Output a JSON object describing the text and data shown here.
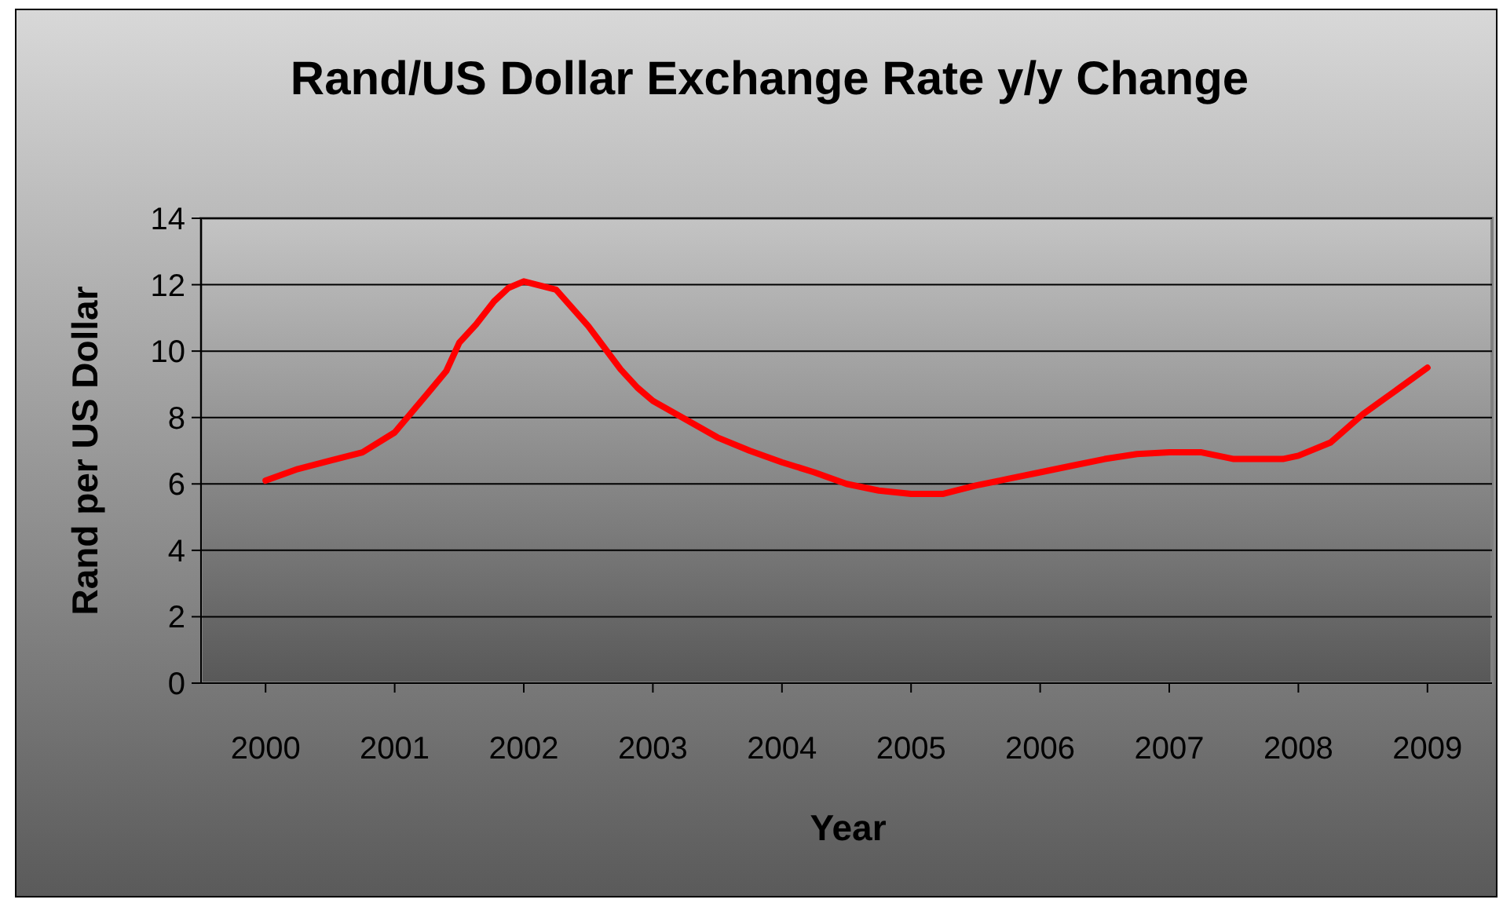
{
  "chart_data": {
    "type": "line",
    "title": "Rand/US Dollar Exchange Rate y/y Change",
    "xlabel": "Year",
    "ylabel": "Rand per US Dollar",
    "x": [
      2000,
      2000.25,
      2000.5,
      2000.75,
      2001,
      2001.25,
      2001.4,
      2001.5,
      2001.63,
      2001.77,
      2001.88,
      2002,
      2002.25,
      2002.5,
      2002.75,
      2002.88,
      2003,
      2003.25,
      2003.5,
      2003.75,
      2004,
      2004.25,
      2004.5,
      2004.75,
      2005,
      2005.25,
      2005.5,
      2005.75,
      2006,
      2006.25,
      2006.5,
      2006.75,
      2007,
      2007.25,
      2007.5,
      2007.75,
      2007.88,
      2008,
      2008.25,
      2008.5,
      2008.75,
      2009
    ],
    "series": [
      {
        "color": "#ff0000",
        "values": [
          6.1,
          6.45,
          6.7,
          6.95,
          7.55,
          8.7,
          9.4,
          10.25,
          10.8,
          11.5,
          11.9,
          12.1,
          11.85,
          10.75,
          9.45,
          8.9,
          8.5,
          7.95,
          7.4,
          7.0,
          6.65,
          6.35,
          6.0,
          5.8,
          5.7,
          5.7,
          5.95,
          6.15,
          6.35,
          6.55,
          6.75,
          6.9,
          6.95,
          6.95,
          6.75,
          6.75,
          6.75,
          6.85,
          7.25,
          8.1,
          8.8,
          9.5
        ]
      }
    ],
    "xlim": [
      1999.5,
      2009.5
    ],
    "xticks": [
      2000,
      2001,
      2002,
      2003,
      2004,
      2005,
      2006,
      2007,
      2008,
      2009
    ],
    "ylim": [
      0,
      14
    ],
    "yticks": [
      0,
      2,
      4,
      6,
      8,
      10,
      12,
      14
    ],
    "grid": "y",
    "marker": "none",
    "line_style": "solid"
  }
}
